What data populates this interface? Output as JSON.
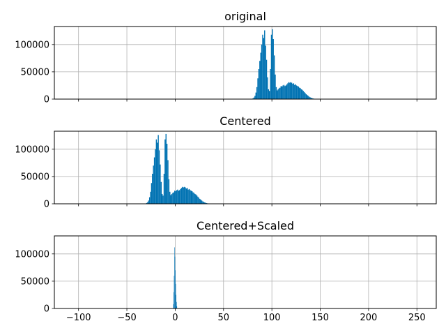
{
  "chart_data": [
    {
      "type": "bar",
      "title": "original",
      "xlim": [
        -125,
        270
      ],
      "ylim": [
        0,
        133000
      ],
      "grid": true,
      "xticks": [
        -100,
        -50,
        0,
        50,
        100,
        150,
        200,
        250
      ],
      "yticks": [
        0,
        50000,
        100000
      ],
      "ytick_labels": [
        "0",
        "50000",
        "100000"
      ],
      "xtick_labels_visible": false,
      "color": "#0072B2",
      "bins": {
        "x": [
          80.5,
          81.5,
          82.5,
          83.5,
          84.5,
          85.5,
          86.5,
          87.5,
          88.5,
          89.5,
          90.5,
          91.5,
          92.5,
          93.5,
          94.5,
          95.5,
          96.5,
          97.5,
          98.5,
          99.5,
          100.5,
          101.5,
          102.5,
          103.5,
          104.5,
          105.5,
          106.5,
          107.5,
          108.5,
          109.5,
          110.5,
          111.5,
          112.5,
          113.5,
          114.5,
          115.5,
          116.5,
          117.5,
          118.5,
          119.5,
          120.5,
          121.5,
          122.5,
          123.5,
          124.5,
          125.5,
          126.5,
          127.5,
          128.5,
          129.5,
          130.5,
          131.5,
          132.5,
          133.5,
          134.5,
          135.5,
          136.5,
          137.5,
          138.5,
          139.5,
          140.5,
          141.5,
          142.5,
          143.5,
          144.5,
          145.5,
          146.5,
          147.5,
          148.5,
          149.5,
          150.5,
          151.5,
          152.5,
          153.5,
          154.5,
          155.5
        ],
        "counts": [
          1500,
          3000,
          6000,
          12000,
          22000,
          38000,
          55000,
          70000,
          85000,
          100000,
          118000,
          112000,
          126000,
          98000,
          72000,
          40000,
          18000,
          15000,
          55000,
          118000,
          128000,
          110000,
          80000,
          45000,
          22000,
          16000,
          18000,
          20000,
          21000,
          24000,
          23000,
          25000,
          26000,
          24000,
          25000,
          27000,
          29000,
          31000,
          30000,
          31000,
          30000,
          28000,
          29000,
          26000,
          27000,
          25000,
          24000,
          23000,
          21000,
          20000,
          18000,
          17000,
          15000,
          13000,
          11000,
          9000,
          7500,
          6000,
          4500,
          3500,
          2500,
          1800,
          1200,
          800,
          500,
          300,
          200,
          150,
          100,
          60,
          40,
          20,
          10,
          5,
          2,
          1
        ]
      }
    },
    {
      "type": "bar",
      "title": "Centered",
      "xlim": [
        -125,
        270
      ],
      "ylim": [
        0,
        133000
      ],
      "grid": true,
      "xticks": [
        -100,
        -50,
        0,
        50,
        100,
        150,
        200,
        250
      ],
      "yticks": [
        0,
        50000,
        100000
      ],
      "ytick_labels": [
        "0",
        "50000",
        "100000"
      ],
      "xtick_labels_visible": false,
      "color": "#0072B2",
      "bins": {
        "x": [
          -29.5,
          -28.5,
          -27.5,
          -26.5,
          -25.5,
          -24.5,
          -23.5,
          -22.5,
          -21.5,
          -20.5,
          -19.5,
          -18.5,
          -17.5,
          -16.5,
          -15.5,
          -14.5,
          -13.5,
          -12.5,
          -11.5,
          -10.5,
          -9.5,
          -8.5,
          -7.5,
          -6.5,
          -5.5,
          -4.5,
          -3.5,
          -2.5,
          -1.5,
          -0.5,
          0.5,
          1.5,
          2.5,
          3.5,
          4.5,
          5.5,
          6.5,
          7.5,
          8.5,
          9.5,
          10.5,
          11.5,
          12.5,
          13.5,
          14.5,
          15.5,
          16.5,
          17.5,
          18.5,
          19.5,
          20.5,
          21.5,
          22.5,
          23.5,
          24.5,
          25.5,
          26.5,
          27.5,
          28.5,
          29.5,
          30.5,
          31.5,
          32.5,
          33.5,
          34.5,
          35.5,
          36.5,
          37.5,
          38.5,
          39.5,
          40.5,
          41.5,
          42.5,
          43.5,
          44.5,
          45.5
        ],
        "counts": [
          1500,
          3000,
          6000,
          12000,
          22000,
          38000,
          55000,
          70000,
          85000,
          100000,
          118000,
          112000,
          126000,
          98000,
          72000,
          40000,
          18000,
          15000,
          55000,
          118000,
          128000,
          110000,
          80000,
          45000,
          22000,
          16000,
          18000,
          20000,
          21000,
          24000,
          23000,
          25000,
          26000,
          24000,
          25000,
          27000,
          29000,
          31000,
          30000,
          31000,
          30000,
          28000,
          29000,
          26000,
          27000,
          25000,
          24000,
          23000,
          21000,
          20000,
          18000,
          17000,
          15000,
          13000,
          11000,
          9000,
          7500,
          6000,
          4500,
          3500,
          2500,
          1800,
          1200,
          800,
          500,
          300,
          200,
          150,
          100,
          60,
          40,
          20,
          10,
          5,
          2,
          1
        ]
      }
    },
    {
      "type": "bar",
      "title": "Centered+Scaled",
      "xlim": [
        -125,
        270
      ],
      "ylim": [
        0,
        133000
      ],
      "grid": true,
      "xticks": [
        -100,
        -50,
        0,
        50,
        100,
        150,
        200,
        250
      ],
      "xtick_labels": [
        "−100",
        "−50",
        "0",
        "50",
        "100",
        "150",
        "200",
        "250"
      ],
      "yticks": [
        0,
        50000,
        100000
      ],
      "ytick_labels": [
        "0",
        "50000",
        "100000"
      ],
      "color": "#0072B2",
      "bins": {
        "x": [
          -1.9,
          -1.5,
          -1.1,
          -0.7,
          -0.3,
          0.1,
          0.5,
          0.9,
          1.3,
          1.7
        ],
        "counts": [
          8000,
          30000,
          60000,
          112000,
          95000,
          70000,
          45000,
          25000,
          12000,
          4000
        ]
      }
    }
  ]
}
